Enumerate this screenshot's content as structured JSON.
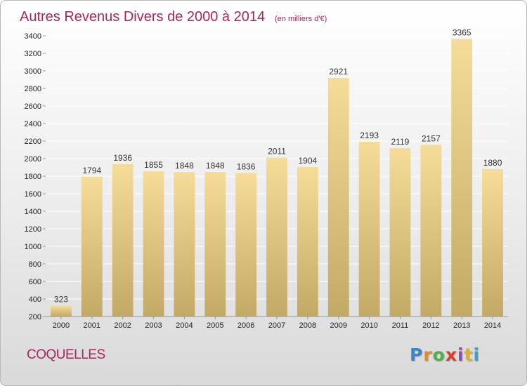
{
  "chart_data": {
    "type": "bar",
    "title": "Autres Revenus Divers de 2000 à 2014",
    "unit_note": "(en milliers d'€)",
    "categories": [
      "2000",
      "2001",
      "2002",
      "2003",
      "2004",
      "2005",
      "2006",
      "2007",
      "2008",
      "2009",
      "2010",
      "2011",
      "2012",
      "2013",
      "2014"
    ],
    "values": [
      323,
      1794,
      1936,
      1855,
      1848,
      1848,
      1836,
      2011,
      1904,
      2921,
      2193,
      2119,
      2157,
      3365,
      1880
    ],
    "ylim": [
      200,
      3400
    ],
    "yticks": [
      200,
      400,
      600,
      800,
      1000,
      1200,
      1400,
      1600,
      1800,
      2000,
      2200,
      2400,
      2600,
      2800,
      3000,
      3200,
      3400
    ],
    "xlabel": "",
    "ylabel": "",
    "grid": true,
    "bar_color_top": "#f5dc98",
    "bar_color_bottom": "#c2aa66"
  },
  "footer": {
    "commune": "COQUELLES",
    "brand": "Proxiti",
    "brand_colors": [
      "#3a86c8",
      "#e08a2a",
      "#4bb04a",
      "#d6402e",
      "#8c4fb5",
      "#e0b02a",
      "#3a9ed0"
    ]
  },
  "colors": {
    "title": "#a8275c"
  }
}
